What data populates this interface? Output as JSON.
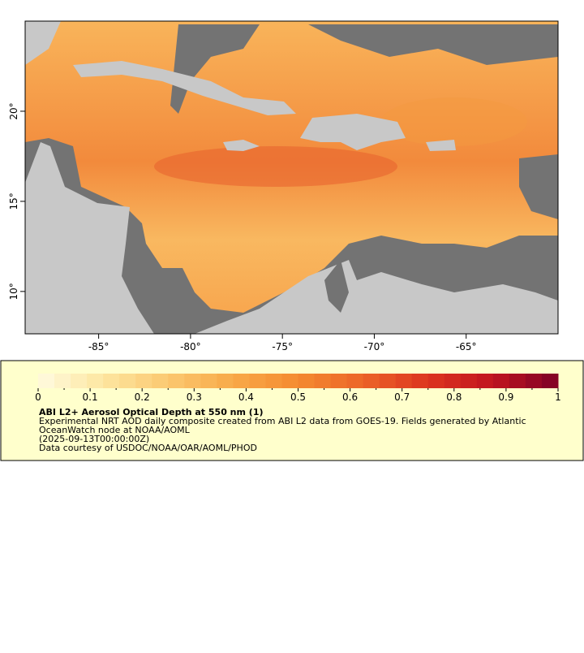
{
  "map": {
    "xlim": [
      -89,
      -60
    ],
    "ylim": [
      7.65,
      25
    ],
    "xticks": [
      {
        "value": -85,
        "label": "-85°"
      },
      {
        "value": -80,
        "label": "-80°"
      },
      {
        "value": -75,
        "label": "-75°"
      },
      {
        "value": -70,
        "label": "-70°"
      },
      {
        "value": -65,
        "label": "-65°"
      }
    ],
    "yticks": [
      {
        "value": 10,
        "label": "10°"
      },
      {
        "value": 15,
        "label": "15°"
      },
      {
        "value": 20,
        "label": "20°"
      }
    ]
  },
  "colorbar": {
    "lim": [
      0,
      1
    ],
    "ticks": [
      0,
      0.1,
      0.2,
      0.3,
      0.4,
      0.5,
      0.6,
      0.7,
      0.8,
      0.9,
      1
    ],
    "colors": [
      "#fffbe0",
      "#fde6a0",
      "#fbc870",
      "#f8a948",
      "#f48a30",
      "#ec6428",
      "#dc3420",
      "#c01420",
      "#7e0026"
    ]
  },
  "legend": {
    "title": "ABI L2+ Aerosol Optical Depth at 550 nm (1)",
    "lines": [
      "Experimental NRT AOD daily composite created from ABI L2 data from GOES-19. Fields generated by Atlantic",
      "OceanWatch node at NOAA/AOML",
      "(2025-09-13T00:00:00Z)",
      "Data courtesy of USDOC/NOAA/OAR/AOML/PHOD"
    ]
  }
}
